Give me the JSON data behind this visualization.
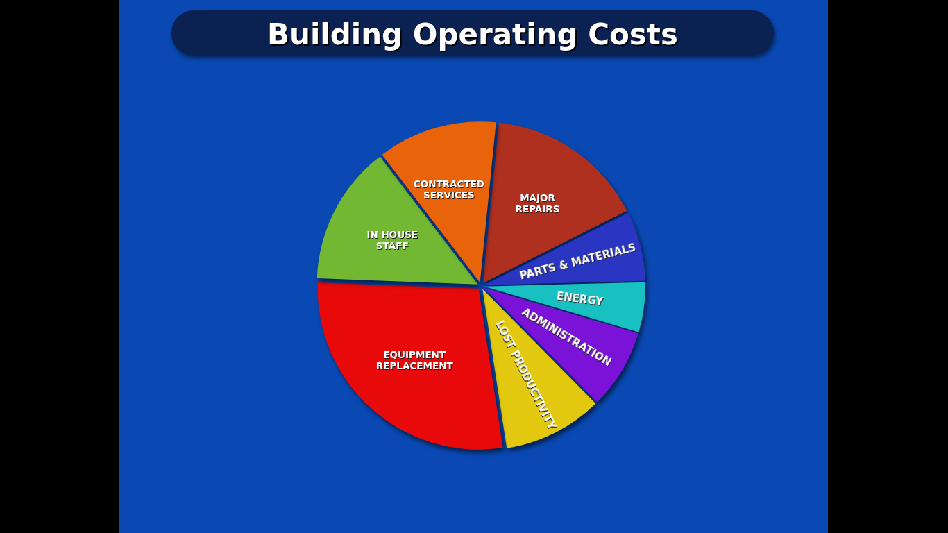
{
  "chart_data": {
    "type": "pie",
    "title": "Building Operating Costs",
    "categories": [
      "MAJOR REPAIRS",
      "PARTS & MATERIALS",
      "ENERGY",
      "ADMINISTRATION",
      "LOST PRODUCTIVITY",
      "EQUIPMENT REPLACEMENT",
      "IN HOUSE STAFF",
      "CONTRACTED SERVICES"
    ],
    "values": [
      16,
      7,
      5,
      8,
      10,
      28,
      14,
      12
    ],
    "colors": [
      "#b0301f",
      "#2a36c2",
      "#18c0c2",
      "#7a12d8",
      "#e2c90f",
      "#e80a0a",
      "#72b832",
      "#e8630a"
    ]
  }
}
